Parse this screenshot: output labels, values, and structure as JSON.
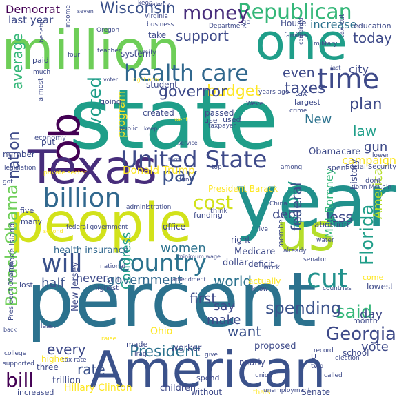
{
  "palette": {
    "purple": "#440154",
    "darkblue": "#3b528b",
    "blue": "#31688e",
    "teal": "#21918c",
    "teal2": "#1f9e89",
    "green": "#35b779",
    "lime": "#6ece58",
    "yellowgreen": "#b5de2b",
    "yellow": "#fde725",
    "slate": "#2c728e",
    "navy": "#3e4a89",
    "indigo": "#472d7b"
  },
  "words": [
    {
      "text": "percent",
      "color": "#2c728e"
    },
    {
      "text": "state",
      "color": "#1f9e89"
    },
    {
      "text": "year",
      "color": "#21918c"
    },
    {
      "text": "people",
      "color": "#d2e21b"
    },
    {
      "text": "American",
      "color": "#3b528b"
    },
    {
      "text": "million",
      "color": "#6ece58"
    },
    {
      "text": "one",
      "color": "#1f9e89"
    },
    {
      "text": "job",
      "color": "#440154"
    },
    {
      "text": "Texas",
      "color": "#472d7b"
    },
    {
      "text": "us",
      "color": "#b5de2b"
    },
    {
      "text": "United State",
      "color": "#3e4a89"
    },
    {
      "text": "health care",
      "color": "#31688e"
    },
    {
      "text": "time",
      "color": "#3e4a89"
    },
    {
      "text": "Republican",
      "color": "#35b779"
    },
    {
      "text": "billion",
      "color": "#31688e"
    },
    {
      "text": "will",
      "color": "#3b528b"
    },
    {
      "text": "country",
      "color": "#2c728e"
    },
    {
      "text": "Barack Obama",
      "color": "#6ece58"
    },
    {
      "text": "Florida",
      "color": "#1f9e89"
    },
    {
      "text": "cut",
      "color": "#21918c"
    },
    {
      "text": "voted",
      "color": "#1f9e89"
    },
    {
      "text": "nation",
      "color": "#3e4a89"
    },
    {
      "text": "money",
      "color": "#472d7b"
    },
    {
      "text": "Wisconsin",
      "color": "#3b528b"
    },
    {
      "text": "cost",
      "color": "#d2e21b"
    },
    {
      "text": "pay",
      "color": "#3b528b"
    },
    {
      "text": "said",
      "color": "#35b779"
    },
    {
      "text": "bill",
      "color": "#440154"
    },
    {
      "text": "Georgia",
      "color": "#3e4a89"
    },
    {
      "text": "spending",
      "color": "#3b528b"
    },
    {
      "text": "President",
      "color": "#2c728e"
    },
    {
      "text": "now",
      "color": "#1f9e89"
    },
    {
      "text": "taxes",
      "color": "#3e4a89"
    },
    {
      "text": "budget",
      "color": "#fde725"
    },
    {
      "text": "governor",
      "color": "#3e4a89"
    },
    {
      "text": "support",
      "color": "#3e4a89"
    },
    {
      "text": "Democrat",
      "color": "#440154"
    },
    {
      "text": "last year",
      "color": "#3e4a89"
    },
    {
      "text": "increase",
      "color": "#2c728e"
    },
    {
      "text": "today",
      "color": "#3e4a89"
    },
    {
      "text": "even",
      "color": "#3e4a89"
    },
    {
      "text": "plan",
      "color": "#3e4a89"
    },
    {
      "text": "law",
      "color": "#1f9e89"
    },
    {
      "text": "New",
      "color": "#2c728e"
    },
    {
      "text": "gun",
      "color": "#3e4a89"
    },
    {
      "text": "city",
      "color": "#3e4a89"
    },
    {
      "text": "average",
      "color": "#35b779"
    },
    {
      "text": "less",
      "color": "#3e4a89"
    },
    {
      "text": "debt",
      "color": "#3e4a89"
    },
    {
      "text": "federal",
      "color": "#3b528b"
    },
    {
      "text": "America",
      "color": "#b5de2b"
    },
    {
      "text": "women",
      "color": "#2c728e"
    },
    {
      "text": "government",
      "color": "#31688e"
    },
    {
      "text": "world",
      "color": "#2c728e"
    },
    {
      "text": "half",
      "color": "#3b528b"
    },
    {
      "text": "never",
      "color": "#3e4a89"
    },
    {
      "text": "first",
      "color": "#3e4a89"
    },
    {
      "text": "say",
      "color": "#3e4a89"
    },
    {
      "text": "make",
      "color": "#3e4a89"
    },
    {
      "text": "want",
      "color": "#3b528b"
    },
    {
      "text": "every",
      "color": "#3e4a89"
    },
    {
      "text": "rate",
      "color": "#3b528b"
    },
    {
      "text": "Congress",
      "color": "#1f9e89"
    },
    {
      "text": "vote",
      "color": "#3e4a89"
    },
    {
      "text": "day",
      "color": "#3e4a89"
    },
    {
      "text": "Mitt Romney",
      "color": "#35b779"
    },
    {
      "text": "program",
      "color": "#fde725"
    },
    {
      "text": "Donald Trump",
      "color": "#fde725"
    },
    {
      "text": "Obamacare",
      "color": "#3e4a89"
    },
    {
      "text": "campaign",
      "color": "#fde725"
    },
    {
      "text": "President Barack",
      "color": "#fde725"
    },
    {
      "text": "Hillary Clinton",
      "color": "#fde725"
    },
    {
      "text": "children",
      "color": "#3e4a89"
    },
    {
      "text": "Senate",
      "color": "#3e4a89"
    },
    {
      "text": "New Jersey",
      "color": "#3e4a89"
    },
    {
      "text": "Rhode Island",
      "color": "#3e4a89"
    },
    {
      "text": "health insurance",
      "color": "#31688e"
    },
    {
      "text": "Medicare",
      "color": "#3e4a89"
    },
    {
      "text": "abortion",
      "color": "#3e4a89"
    },
    {
      "text": "proposed",
      "color": "#3e4a89"
    },
    {
      "text": "school",
      "color": "#3e4a89"
    },
    {
      "text": "trillion",
      "color": "#3e4a89"
    },
    {
      "text": "Ohio",
      "color": "#fde725"
    },
    {
      "text": "worker",
      "color": "#3e4a89"
    },
    {
      "text": "funding",
      "color": "#3e4a89"
    },
    {
      "text": "office",
      "color": "#3e4a89"
    },
    {
      "text": "created",
      "color": "#3e4a89"
    },
    {
      "text": "passed",
      "color": "#3e4a89"
    },
    {
      "text": "used",
      "color": "#3e4a89"
    },
    {
      "text": "use",
      "color": "#3e4a89"
    },
    {
      "text": "lowest",
      "color": "#3e4a89"
    },
    {
      "text": "month",
      "color": "#3e4a89"
    },
    {
      "text": "spent",
      "color": "#3e4a89"
    },
    {
      "text": "largest",
      "color": "#3e4a89"
    },
    {
      "text": "dollar",
      "color": "#3e4a89"
    },
    {
      "text": "deficit",
      "color": "#3e4a89"
    },
    {
      "text": "right",
      "color": "#3e4a89"
    },
    {
      "text": "member",
      "color": "#3e4a89"
    },
    {
      "text": "history",
      "color": "#3e4a89"
    },
    {
      "text": "student",
      "color": "#3e4a89"
    },
    {
      "text": "system",
      "color": "#3e4a89"
    },
    {
      "text": "take",
      "color": "#3e4a89"
    },
    {
      "text": "House",
      "color": "#3e4a89"
    },
    {
      "text": "education",
      "color": "#3e4a89"
    },
    {
      "text": "tax cut",
      "color": "#3e4a89"
    },
    {
      "text": "go",
      "color": "#3e4a89"
    },
    {
      "text": "going",
      "color": "#3e4a89"
    },
    {
      "text": "put",
      "color": "#3e4a89"
    },
    {
      "text": "economy",
      "color": "#3e4a89"
    },
    {
      "text": "number",
      "color": "#3e4a89"
    },
    {
      "text": "paid",
      "color": "#3e4a89"
    },
    {
      "text": "lost",
      "color": "#3e4a89"
    },
    {
      "text": "five",
      "color": "#3e4a89"
    },
    {
      "text": "many",
      "color": "#3e4a89"
    },
    {
      "text": "still",
      "color": "#3e4a89"
    },
    {
      "text": "highest",
      "color": "#3e4a89"
    },
    {
      "text": "Social Security",
      "color": "#3e4a89"
    },
    {
      "text": "actually",
      "color": "#fde725"
    },
    {
      "text": "dont",
      "color": "#3e4a89"
    },
    {
      "text": "come",
      "color": "#fde725"
    },
    {
      "text": "higher",
      "color": "#fde725"
    },
    {
      "text": "three",
      "color": "#3e4a89"
    },
    {
      "text": "increased",
      "color": "#3e4a89"
    },
    {
      "text": "without",
      "color": "#3e4a89"
    },
    {
      "text": "spend",
      "color": "#3e4a89"
    },
    {
      "text": "thats",
      "color": "#fde725"
    },
    {
      "text": "made",
      "color": "#3e4a89"
    },
    {
      "text": "nearly",
      "color": "#3e4a89"
    },
    {
      "text": "work",
      "color": "#3e4a89"
    },
    {
      "text": "U",
      "color": "#3e4a89"
    },
    {
      "text": "two",
      "color": "#3e4a89"
    },
    {
      "text": "tax",
      "color": "#3e4a89"
    },
    {
      "text": "crime",
      "color": "#3e4a89"
    },
    {
      "text": "family",
      "color": "#3e4a89"
    },
    {
      "text": "Oregon",
      "color": "#3e4a89"
    },
    {
      "text": "Virginia",
      "color": "#3e4a89"
    },
    {
      "text": "business",
      "color": "#3e4a89"
    },
    {
      "text": "keep",
      "color": "#3e4a89"
    },
    {
      "text": "majority",
      "color": "#3e4a89"
    },
    {
      "text": "seven",
      "color": "#3e4a89"
    },
    {
      "text": "Department",
      "color": "#3e4a89"
    },
    {
      "text": "families",
      "color": "#3e4a89"
    },
    {
      "text": "military",
      "color": "#3e4a89"
    },
    {
      "text": "combined",
      "color": "#3e4a89"
    },
    {
      "text": "income",
      "color": "#3e4a89"
    },
    {
      "text": "benefit",
      "color": "#3e4a89"
    },
    {
      "text": "four",
      "color": "#3e4a89"
    },
    {
      "text": "teacher",
      "color": "#3e4a89"
    },
    {
      "text": "much",
      "color": "#3e4a89"
    },
    {
      "text": "almost",
      "color": "#3e4a89"
    },
    {
      "text": "legislation",
      "color": "#3e4a89"
    },
    {
      "text": "voter",
      "color": "#3e4a89"
    },
    {
      "text": "public",
      "color": "#3e4a89"
    },
    {
      "text": "service",
      "color": "#3e4a89"
    },
    {
      "text": "term",
      "color": "#3e4a89"
    },
    {
      "text": "private sector",
      "color": "#fde725"
    },
    {
      "text": "keep",
      "color": "#3e4a89"
    },
    {
      "text": "got",
      "color": "#3e4a89"
    },
    {
      "text": "administration",
      "color": "#3e4a89"
    },
    {
      "text": "fund",
      "color": "#3e4a89"
    },
    {
      "text": "think",
      "color": "#3e4a89"
    },
    {
      "text": "federal government",
      "color": "#3e4a89"
    },
    {
      "text": "second",
      "color": "#fde725"
    },
    {
      "text": "China",
      "color": "#3e4a89"
    },
    {
      "text": "live",
      "color": "#3e4a89"
    },
    {
      "text": "water",
      "color": "#3e4a89"
    },
    {
      "text": "minimum wage",
      "color": "#3e4a89"
    },
    {
      "text": "national",
      "color": "#3e4a89"
    },
    {
      "text": "already",
      "color": "#3e4a89"
    },
    {
      "text": "senator",
      "color": "#3e4a89"
    },
    {
      "text": "countries",
      "color": "#3e4a89"
    },
    {
      "text": "know",
      "color": "#3e4a89"
    },
    {
      "text": "amendment",
      "color": "#3e4a89"
    },
    {
      "text": "President Obama",
      "color": "#3e4a89"
    },
    {
      "text": "back",
      "color": "#3e4a89"
    },
    {
      "text": "least",
      "color": "#3e4a89"
    },
    {
      "text": "raise",
      "color": "#fde725"
    },
    {
      "text": "Iraq",
      "color": "#3e4a89"
    },
    {
      "text": "tax rate",
      "color": "#3e4a89"
    },
    {
      "text": "supported",
      "color": "#3e4a89"
    },
    {
      "text": "college",
      "color": "#3e4a89"
    },
    {
      "text": "give",
      "color": "#3e4a89"
    },
    {
      "text": "union",
      "color": "#3e4a89"
    },
    {
      "text": "unemployment",
      "color": "#3e4a89"
    },
    {
      "text": "election",
      "color": "#3e4a89"
    },
    {
      "text": "record",
      "color": "#3e4a89"
    },
    {
      "text": "called",
      "color": "#3e4a89"
    },
    {
      "text": "John McCain",
      "color": "#3e4a89"
    },
    {
      "text": "among",
      "color": "#3e4a89"
    },
    {
      "text": "top",
      "color": "#3e4a89"
    },
    {
      "text": "years ago",
      "color": "#3e4a89"
    },
    {
      "text": "Weve",
      "color": "#3e4a89"
    },
    {
      "text": "went",
      "color": "#fde725"
    },
    {
      "text": "taxpayer",
      "color": "#3e4a89"
    },
    {
      "text": "lower",
      "color": "#3e4a89"
    },
    {
      "text": "last",
      "color": "#3e4a89"
    },
    {
      "text": "right now",
      "color": "#fde725"
    }
  ]
}
